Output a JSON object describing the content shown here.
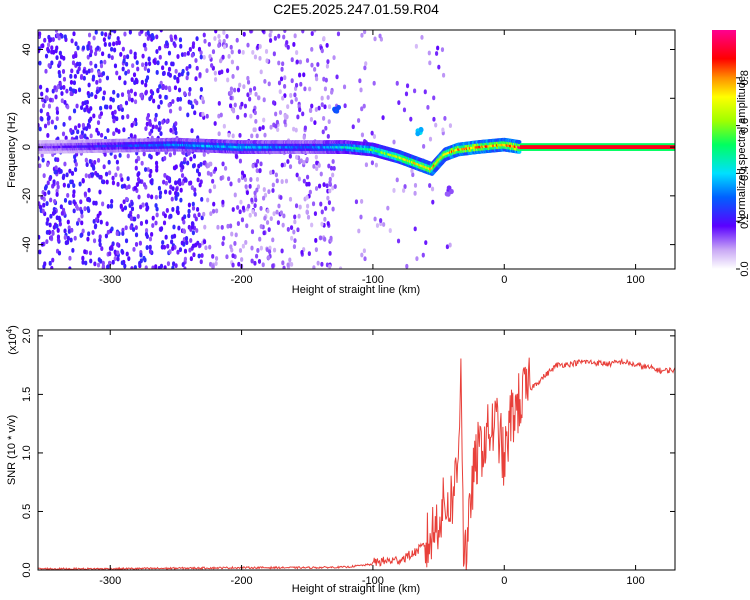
{
  "title": "C2E5.2025.247.01.59.R04",
  "chart_data": [
    {
      "type": "heatmap",
      "xlabel": "Height of straight line (km)",
      "ylabel": "Frequency (Hz)",
      "xlim": [
        -355,
        130
      ],
      "ylim": [
        -50,
        48
      ],
      "xticks": [
        -300,
        -200,
        -100,
        0,
        100
      ],
      "yticks": [
        -40,
        -20,
        0,
        20,
        40
      ],
      "xtick_labels": [
        "-300",
        "-200",
        "-100",
        "0",
        "100"
      ],
      "ytick_labels": [
        "-40",
        "-20",
        "0",
        "20",
        "40"
      ],
      "colorbar": {
        "label": "Normalized spectral amplitude",
        "range": [
          0,
          1
        ],
        "ticks": [
          0.0,
          0.2,
          0.4,
          0.6,
          0.8
        ],
        "tick_labels": [
          "0.0",
          "0.2",
          "0.4",
          "0.6",
          "0.8"
        ]
      },
      "ridge": {
        "description": "main spectral line",
        "x": [
          -355,
          -250,
          -200,
          -150,
          -120,
          -100,
          -80,
          -65,
          -55,
          -45,
          -35,
          -20,
          0,
          12,
          130
        ],
        "y": [
          0,
          1,
          0,
          0,
          0,
          -1,
          -4,
          -7,
          -9,
          -3,
          -1,
          0,
          1,
          0,
          0
        ],
        "amplitude": [
          0.15,
          0.35,
          0.4,
          0.3,
          0.45,
          0.55,
          0.7,
          0.75,
          0.8,
          0.75,
          0.85,
          0.85,
          0.8,
          0.9,
          0.9
        ]
      },
      "secondary_features": [
        {
          "x": -128,
          "y": 15,
          "amplitude": 0.3
        },
        {
          "x": -65,
          "y": 6,
          "amplitude": 0.4
        },
        {
          "x": -42,
          "y": -18,
          "amplitude": 0.15
        }
      ]
    },
    {
      "type": "line",
      "xlabel": "Height of straight line (km)",
      "ylabel": "SNR (10 * v/v)",
      "yscale_label": "(x10",
      "yscale_exponent": "4",
      "yscale_suffix": ")",
      "xlim": [
        -355,
        130
      ],
      "ylim": [
        0,
        2.05
      ],
      "xticks": [
        -300,
        -200,
        -100,
        0,
        100
      ],
      "yticks": [
        0.0,
        0.5,
        1.0,
        1.5,
        2.0
      ],
      "xtick_labels": [
        "-300",
        "-200",
        "-100",
        "0",
        "100"
      ],
      "ytick_labels": [
        "0.0",
        "0.5",
        "1.0",
        "1.5",
        "2.0"
      ],
      "color": "#e8403a",
      "series": [
        {
          "name": "SNR",
          "x": [
            -355,
            -300,
            -250,
            -200,
            -150,
            -120,
            -100,
            -90,
            -80,
            -70,
            -60,
            -55,
            -50,
            -45,
            -40,
            -35,
            -33,
            -31,
            -28,
            -25,
            -20,
            -15,
            -10,
            -5,
            0,
            5,
            10,
            15,
            20,
            25,
            30,
            35,
            40,
            50,
            60,
            70,
            80,
            90,
            100,
            110,
            120,
            130
          ],
          "y": [
            0.01,
            0.01,
            0.015,
            0.02,
            0.02,
            0.025,
            0.05,
            0.06,
            0.07,
            0.12,
            0.2,
            0.3,
            0.45,
            0.55,
            0.6,
            0.9,
            1.9,
            0.2,
            0.15,
            0.7,
            1.0,
            1.1,
            1.2,
            1.25,
            0.9,
            1.3,
            1.4,
            1.5,
            1.55,
            1.6,
            1.65,
            1.7,
            1.75,
            1.76,
            1.78,
            1.77,
            1.76,
            1.78,
            1.75,
            1.73,
            1.7,
            1.71
          ]
        }
      ]
    }
  ]
}
